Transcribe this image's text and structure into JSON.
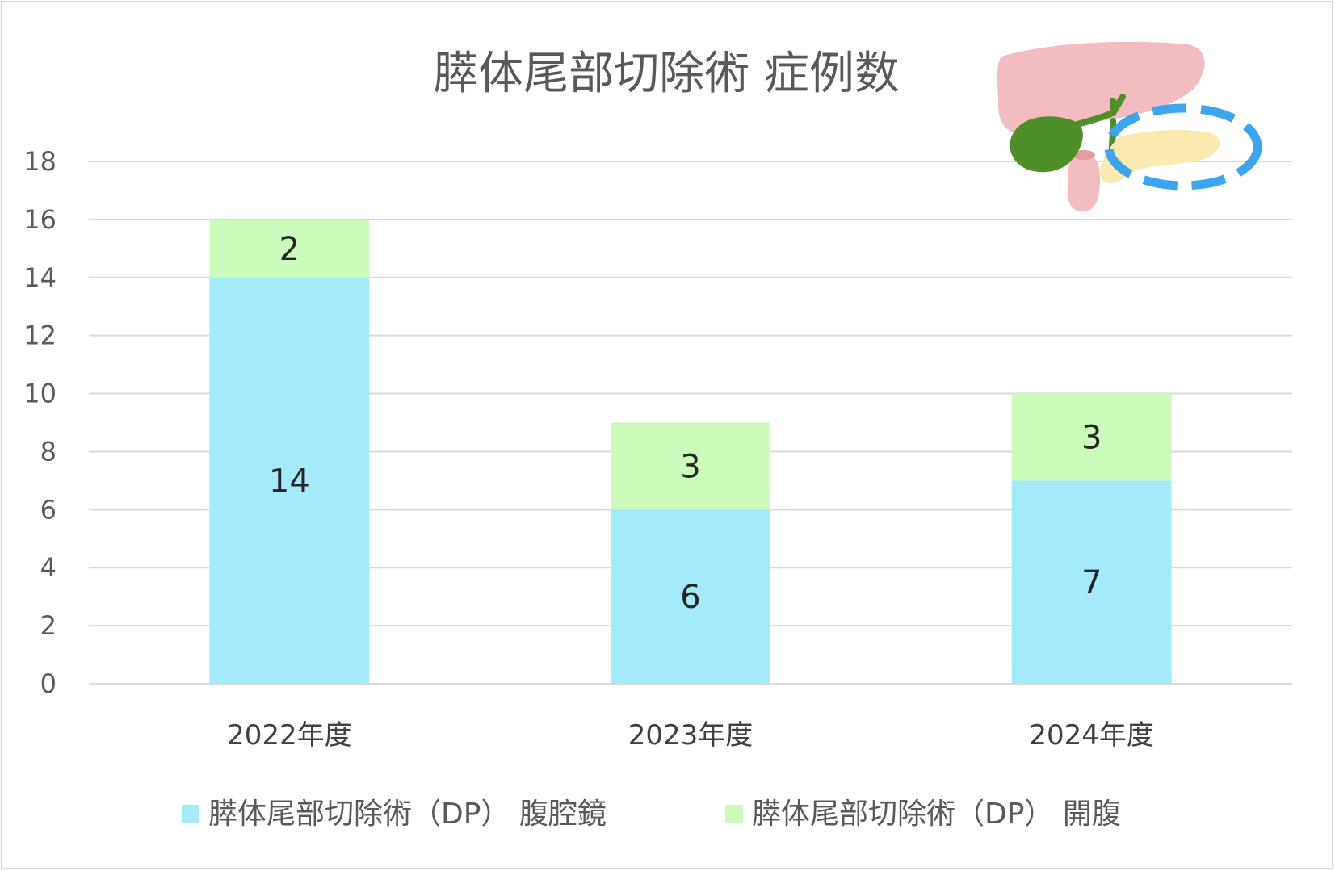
{
  "chart_data": {
    "type": "bar",
    "stacked": true,
    "title": "膵体尾部切除術 症例数",
    "categories": [
      "2022年度",
      "2023年度",
      "2024年度"
    ],
    "series": [
      {
        "name": "膵体尾部切除術（DP） 腹腔鏡",
        "values": [
          14,
          6,
          7
        ],
        "color": "#a5eafb"
      },
      {
        "name": "膵体尾部切除術（DP） 開腹",
        "values": [
          2,
          3,
          3
        ],
        "color": "#ccfcbb"
      }
    ],
    "ylim": [
      0,
      18
    ],
    "yticks": [
      0,
      2,
      4,
      6,
      8,
      10,
      12,
      14,
      16,
      18
    ],
    "grid": true,
    "gridColor": "#d9d9d9",
    "legend": "bottom",
    "illustration": "pancreas-organ-illustration"
  }
}
